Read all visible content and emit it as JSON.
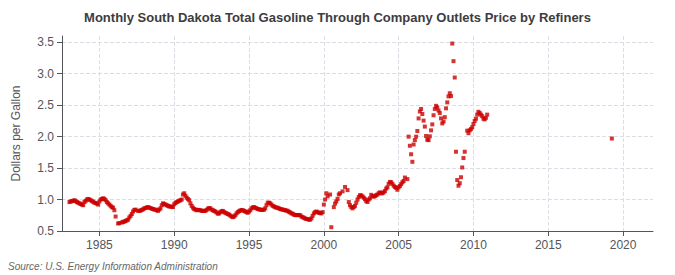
{
  "chart_data": {
    "type": "scatter",
    "title": "Monthly South Dakota Total Gasoline Through Company Outlets Price by Refiners",
    "ylabel": "Dollars per Gallon",
    "source": "Source: U.S. Energy Information Administration",
    "color": "#cc0000",
    "marker": "square",
    "grid": true,
    "xlim": [
      1982.5,
      2022
    ],
    "ylim": [
      0.5,
      3.6
    ],
    "xticks": [
      1985,
      1990,
      1995,
      2000,
      2005,
      2010,
      2015,
      2020
    ],
    "yticks": [
      0.5,
      {
        "value": 1.0,
        "label": "1.0"
      },
      1.5,
      {
        "value": 2.0,
        "label": "2.0"
      },
      2.5,
      {
        "value": 3.0,
        "label": "3.0"
      },
      3.5
    ],
    "x": [
      1983.0,
      1983.083,
      1983.167,
      1983.25,
      1983.333,
      1983.417,
      1983.5,
      1983.583,
      1983.667,
      1983.75,
      1983.833,
      1983.917,
      1984.0,
      1984.083,
      1984.167,
      1984.25,
      1984.333,
      1984.417,
      1984.5,
      1984.583,
      1984.667,
      1984.75,
      1984.833,
      1984.917,
      1985.0,
      1985.083,
      1985.167,
      1985.25,
      1985.333,
      1985.417,
      1985.5,
      1985.583,
      1985.667,
      1985.75,
      1985.833,
      1985.917,
      1986.0,
      1986.083,
      1986.25,
      1986.333,
      1986.5,
      1986.583,
      1986.667,
      1986.75,
      1986.833,
      1986.917,
      1987.0,
      1987.083,
      1987.167,
      1987.25,
      1987.333,
      1987.417,
      1987.583,
      1987.667,
      1987.75,
      1987.833,
      1987.917,
      1988.0,
      1988.083,
      1988.167,
      1988.25,
      1988.333,
      1988.417,
      1988.5,
      1988.583,
      1988.667,
      1988.75,
      1988.833,
      1988.917,
      1989.0,
      1989.083,
      1989.167,
      1989.25,
      1989.333,
      1989.417,
      1989.5,
      1989.583,
      1989.667,
      1989.75,
      1989.833,
      1989.917,
      1990.0,
      1990.083,
      1990.167,
      1990.25,
      1990.333,
      1990.417,
      1990.5,
      1990.583,
      1990.667,
      1990.75,
      1990.833,
      1990.917,
      1991.0,
      1991.083,
      1991.167,
      1991.25,
      1991.333,
      1991.417,
      1991.5,
      1991.583,
      1991.667,
      1991.75,
      1991.833,
      1991.917,
      1992.0,
      1992.083,
      1992.167,
      1992.25,
      1992.333,
      1992.417,
      1992.5,
      1992.583,
      1992.667,
      1992.75,
      1992.833,
      1992.917,
      1993.0,
      1993.083,
      1993.167,
      1993.25,
      1993.333,
      1993.417,
      1993.5,
      1993.583,
      1993.667,
      1993.75,
      1993.833,
      1993.917,
      1994.0,
      1994.083,
      1994.167,
      1994.25,
      1994.333,
      1994.417,
      1994.5,
      1994.583,
      1994.667,
      1994.75,
      1994.833,
      1994.917,
      1995.0,
      1995.083,
      1995.167,
      1995.25,
      1995.333,
      1995.417,
      1995.5,
      1995.583,
      1995.667,
      1995.75,
      1995.833,
      1995.917,
      1996.0,
      1996.083,
      1996.167,
      1996.25,
      1996.333,
      1996.417,
      1996.5,
      1996.583,
      1996.667,
      1996.75,
      1996.833,
      1996.917,
      1997.0,
      1997.083,
      1997.167,
      1997.25,
      1997.333,
      1997.417,
      1997.5,
      1997.583,
      1997.667,
      1997.75,
      1997.833,
      1997.917,
      1998.0,
      1998.083,
      1998.167,
      1998.25,
      1998.333,
      1998.417,
      1998.5,
      1998.583,
      1998.667,
      1998.75,
      1998.833,
      1998.917,
      1999.0,
      1999.083,
      1999.167,
      1999.25,
      1999.333,
      1999.417,
      1999.5,
      1999.583,
      1999.667,
      1999.75,
      1999.833,
      1999.917,
      2000.0,
      2000.083,
      2000.167,
      2000.25,
      2000.417,
      2000.5,
      2000.667,
      2000.75,
      2000.833,
      2000.917,
      2001.0,
      2001.083,
      2001.25,
      2001.417,
      2001.583,
      2001.667,
      2001.75,
      2001.833,
      2001.917,
      2002.0,
      2002.083,
      2002.167,
      2002.25,
      2002.333,
      2002.417,
      2002.5,
      2002.583,
      2002.667,
      2002.75,
      2002.833,
      2002.917,
      2003.0,
      2003.083,
      2003.167,
      2003.25,
      2003.333,
      2003.417,
      2003.5,
      2003.583,
      2003.667,
      2003.75,
      2003.833,
      2003.917,
      2004.0,
      2004.083,
      2004.167,
      2004.25,
      2004.333,
      2004.417,
      2004.5,
      2004.583,
      2004.667,
      2004.75,
      2004.833,
      2004.917,
      2005.0,
      2005.083,
      2005.167,
      2005.25,
      2005.333,
      2005.417,
      2005.583,
      2005.667,
      2005.75,
      2005.833,
      2005.917,
      2006.0,
      2006.083,
      2006.167,
      2006.25,
      2006.333,
      2006.417,
      2006.5,
      2006.583,
      2006.667,
      2006.75,
      2006.833,
      2006.917,
      2007.0,
      2007.083,
      2007.167,
      2007.25,
      2007.333,
      2007.417,
      2007.5,
      2007.583,
      2007.667,
      2007.75,
      2007.833,
      2007.917,
      2008.0,
      2008.083,
      2008.167,
      2008.25,
      2008.333,
      2008.417,
      2008.5,
      2008.583,
      2008.667,
      2008.75,
      2008.833,
      2008.917,
      2009.0,
      2009.083,
      2009.167,
      2009.25,
      2009.333,
      2009.417,
      2009.583,
      2009.667,
      2009.75,
      2009.833,
      2009.917,
      2010.0,
      2010.083,
      2010.167,
      2010.25,
      2010.333,
      2010.417,
      2010.5,
      2010.583,
      2010.667,
      2010.75,
      2010.833,
      2010.917,
      2019.25
    ],
    "values": [
      0.96,
      0.97,
      0.975,
      0.98,
      0.99,
      0.975,
      0.96,
      0.95,
      0.94,
      0.93,
      0.92,
      0.91,
      0.96,
      0.98,
      1.0,
      1.01,
      1.0,
      0.99,
      0.975,
      0.965,
      0.95,
      0.945,
      0.935,
      0.92,
      0.97,
      1.0,
      1.01,
      1.02,
      1.01,
      0.99,
      0.96,
      0.94,
      0.92,
      0.9,
      0.88,
      0.87,
      0.83,
      0.73,
      0.62,
      0.625,
      0.635,
      0.645,
      0.65,
      0.66,
      0.67,
      0.68,
      0.715,
      0.74,
      0.77,
      0.81,
      0.835,
      0.84,
      0.82,
      0.82,
      0.825,
      0.835,
      0.845,
      0.86,
      0.865,
      0.875,
      0.88,
      0.87,
      0.865,
      0.855,
      0.85,
      0.84,
      0.84,
      0.83,
      0.82,
      0.84,
      0.86,
      0.91,
      0.94,
      0.93,
      0.92,
      0.91,
      0.9,
      0.89,
      0.89,
      0.885,
      0.88,
      0.925,
      0.945,
      0.96,
      0.97,
      0.98,
      0.99,
      1.0,
      1.08,
      1.1,
      1.06,
      1.03,
      1.01,
      0.99,
      0.94,
      0.9,
      0.87,
      0.85,
      0.84,
      0.83,
      0.835,
      0.835,
      0.83,
      0.82,
      0.82,
      0.82,
      0.82,
      0.835,
      0.855,
      0.865,
      0.86,
      0.84,
      0.83,
      0.82,
      0.81,
      0.795,
      0.775,
      0.78,
      0.8,
      0.815,
      0.82,
      0.8,
      0.79,
      0.78,
      0.77,
      0.76,
      0.745,
      0.73,
      0.72,
      0.73,
      0.75,
      0.78,
      0.8,
      0.815,
      0.825,
      0.835,
      0.83,
      0.82,
      0.81,
      0.8,
      0.79,
      0.81,
      0.83,
      0.86,
      0.875,
      0.88,
      0.87,
      0.86,
      0.85,
      0.845,
      0.84,
      0.835,
      0.835,
      0.84,
      0.86,
      0.91,
      0.95,
      0.95,
      0.94,
      0.92,
      0.9,
      0.89,
      0.88,
      0.87,
      0.87,
      0.86,
      0.85,
      0.845,
      0.84,
      0.835,
      0.83,
      0.825,
      0.82,
      0.805,
      0.795,
      0.78,
      0.775,
      0.76,
      0.755,
      0.75,
      0.755,
      0.755,
      0.75,
      0.73,
      0.72,
      0.71,
      0.7,
      0.69,
      0.69,
      0.68,
      0.68,
      0.7,
      0.74,
      0.78,
      0.8,
      0.81,
      0.8,
      0.79,
      0.785,
      0.78,
      0.8,
      0.92,
      1.0,
      1.1,
      1.05,
      1.08,
      0.56,
      0.88,
      0.935,
      0.97,
      1.01,
      1.08,
      1.1,
      1.13,
      1.2,
      1.15,
      0.96,
      0.91,
      0.88,
      0.86,
      0.88,
      0.9,
      0.95,
      1.0,
      1.04,
      1.07,
      1.065,
      1.05,
      1.03,
      1.005,
      0.975,
      0.96,
      1.0,
      1.02,
      1.075,
      1.055,
      1.045,
      1.055,
      1.07,
      1.08,
      1.1,
      1.115,
      1.1,
      1.1,
      1.115,
      1.135,
      1.175,
      1.195,
      1.25,
      1.28,
      1.275,
      1.25,
      1.22,
      1.2,
      1.185,
      1.155,
      1.195,
      1.215,
      1.245,
      1.275,
      1.295,
      1.35,
      1.325,
      2.0,
      1.855,
      1.72,
      1.6,
      1.875,
      1.945,
      2.0,
      2.09,
      2.29,
      2.4,
      2.44,
      2.36,
      2.255,
      2.16,
      2.01,
      1.95,
      1.945,
      2.005,
      2.1,
      2.195,
      2.34,
      2.44,
      2.49,
      2.465,
      2.415,
      2.375,
      2.29,
      2.21,
      2.24,
      2.31,
      2.45,
      2.545,
      2.64,
      2.69,
      2.645,
      3.48,
      3.2,
      2.94,
      1.76,
      1.31,
      1.22,
      1.26,
      1.355,
      1.51,
      1.66,
      1.76,
      2.095,
      2.055,
      2.1,
      2.12,
      2.15,
      2.2,
      2.25,
      2.285,
      2.35,
      2.395,
      2.375,
      2.35,
      2.325,
      2.285,
      2.275,
      2.3,
      2.35,
      1.97
    ]
  }
}
